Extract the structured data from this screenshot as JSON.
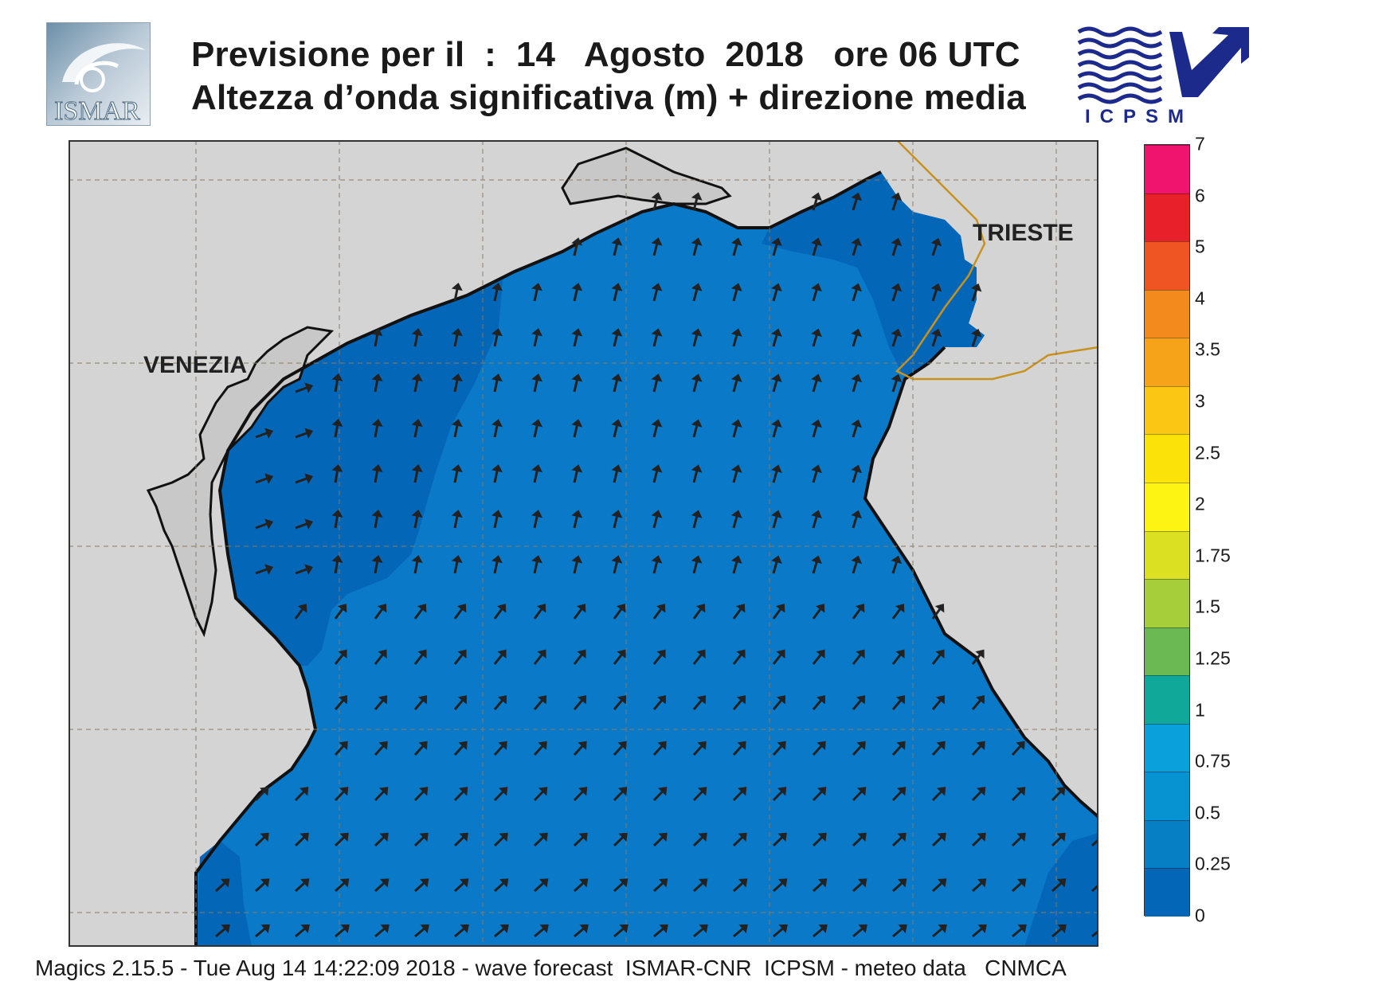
{
  "header": {
    "title_line1": "Previsione per il  :  14   Agosto  2018   ore 06 UTC",
    "title_line2": "Altezza d’onda significativa (m) + direzione media"
  },
  "logos": {
    "left": {
      "text": "ISMAR",
      "icon": "ismar-logo"
    },
    "right": {
      "text": "ICPSM",
      "icon": "icpsm-logo-waves-arrow"
    }
  },
  "map": {
    "places": [
      {
        "name": "VENEZIA"
      },
      {
        "name": "TRIESTE"
      }
    ],
    "colors": {
      "land": "#d4d4d4",
      "sea_0_025": "#0466b6",
      "sea_025_05": "#0a7ac8",
      "coast": "#111111",
      "border": "#c8921e",
      "grid": "#8a7a60",
      "arrow": "#222222"
    },
    "wave_height_range_m": [
      0,
      0.5
    ]
  },
  "legend": {
    "title": "",
    "levels": [
      "7",
      "6",
      "5",
      "4",
      "3.5",
      "3",
      "2.5",
      "2",
      "1.75",
      "1.5",
      "1.25",
      "1",
      "0.75",
      "0.5",
      "0.25",
      "0"
    ],
    "colors": [
      "#f0146e",
      "#e8202a",
      "#ee5522",
      "#f28a1e",
      "#f6a31a",
      "#fbc614",
      "#fbe30a",
      "#fdf414",
      "#dbe122",
      "#a6ce3a",
      "#6ab952",
      "#10a898",
      "#0aa0dc",
      "#0792d2",
      "#067fc4",
      "#0466b6"
    ]
  },
  "footer": {
    "text": "Magics 2.15.5 - Tue Aug 14 14:22:09 2018 - wave forecast  ISMAR-CNR  ICPSM - meteo data   CNMCA"
  }
}
